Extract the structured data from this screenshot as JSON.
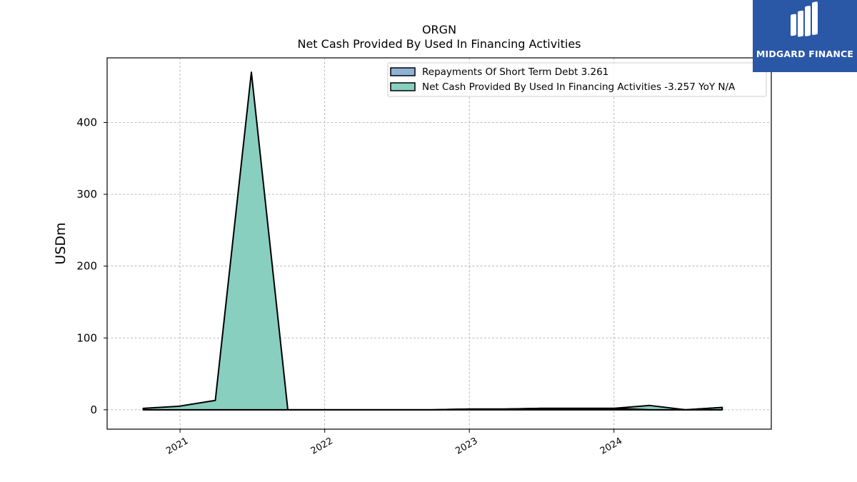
{
  "chart_data": {
    "type": "area",
    "title": "ORGN",
    "subtitle": "Net Cash Provided By Used In Financing Activities",
    "ylabel": "USDm",
    "xlabel": "",
    "x": [
      "2020-09-30",
      "2020-12-31",
      "2021-03-31",
      "2021-06-30",
      "2021-09-30",
      "2021-12-31",
      "2022-03-31",
      "2022-06-30",
      "2022-09-30",
      "2022-12-31",
      "2023-03-31",
      "2023-06-30",
      "2023-09-30",
      "2023-12-31",
      "2024-03-31",
      "2024-06-30",
      "2024-09-30"
    ],
    "x_ticks": [
      "2021",
      "2022",
      "2023",
      "2024"
    ],
    "ylim": [
      -27,
      490
    ],
    "y_ticks": [
      0,
      100,
      200,
      300,
      400
    ],
    "grid": true,
    "legend_position": "top-right",
    "series": [
      {
        "name": "Repayments Of Short Term Debt",
        "legend_label": "Repayments Of Short Term Debt  3.261",
        "color": "#8eb2d6",
        "values": [
          0,
          0,
          0,
          0,
          0,
          0,
          0,
          0,
          0,
          1,
          1,
          2,
          2,
          2,
          0,
          0,
          3.261
        ]
      },
      {
        "name": "Net Cash Provided By Used In Financing Activities",
        "legend_label": "Net Cash Provided By Used In Financing Activities  -3.257 YoY N/A",
        "color": "#88cfc0",
        "values": [
          2,
          5,
          13,
          470,
          0,
          0,
          0,
          0,
          0,
          0,
          0,
          0,
          0,
          0,
          6,
          0,
          -3.257
        ]
      }
    ]
  },
  "logo": {
    "name": "midgard-logo-icon",
    "text": "MIDGARD FINANCE",
    "color": "#2b57a7"
  }
}
